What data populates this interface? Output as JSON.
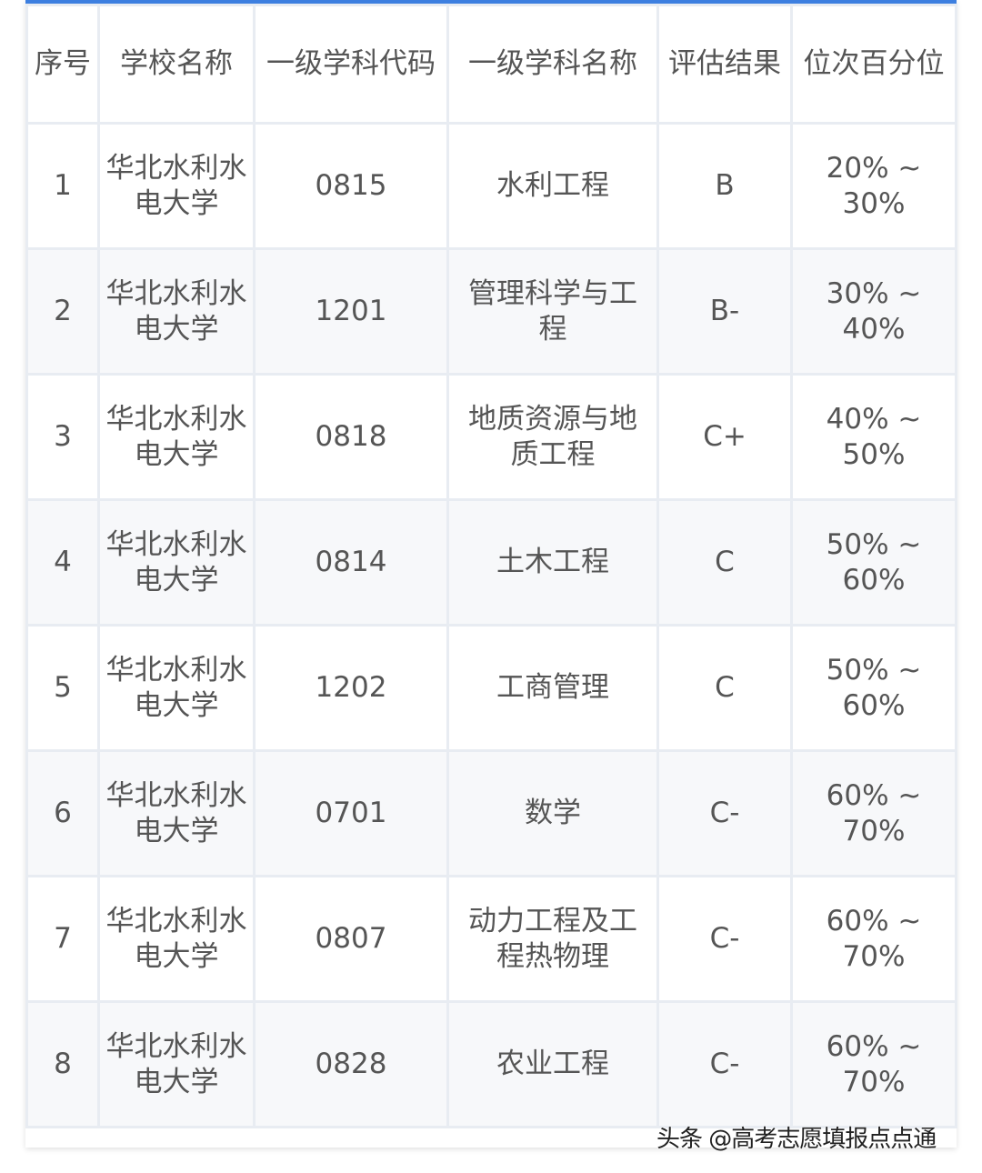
{
  "table": {
    "headers": [
      "序号",
      "学校名称",
      "一级学科代码",
      "一级学科名称",
      "评估结果",
      "位次百分位"
    ],
    "rows": [
      [
        "1",
        "华北水利水电大学",
        "0815",
        "水利工程",
        "B",
        "20% ~ 30%"
      ],
      [
        "2",
        "华北水利水电大学",
        "1201",
        "管理科学与工程",
        "B-",
        "30% ~ 40%"
      ],
      [
        "3",
        "华北水利水电大学",
        "0818",
        "地质资源与地质工程",
        "C+",
        "40% ~ 50%"
      ],
      [
        "4",
        "华北水利水电大学",
        "0814",
        "土木工程",
        "C",
        "50% ~ 60%"
      ],
      [
        "5",
        "华北水利水电大学",
        "1202",
        "工商管理",
        "C",
        "50% ~ 60%"
      ],
      [
        "6",
        "华北水利水电大学",
        "0701",
        "数学",
        "C-",
        "60% ~ 70%"
      ],
      [
        "7",
        "华北水利水电大学",
        "0807",
        "动力工程及工程热物理",
        "C-",
        "60% ~ 70%"
      ],
      [
        "8",
        "华北水利水电大学",
        "0828",
        "农业工程",
        "C-",
        "60% ~ 70%"
      ]
    ]
  },
  "watermark": "头条 @高考志愿填报点点通",
  "colors": {
    "accent": "#3d7fe0",
    "text": "#555555",
    "border": "#e8ecf2",
    "alt_row": "#f7f8fa"
  }
}
